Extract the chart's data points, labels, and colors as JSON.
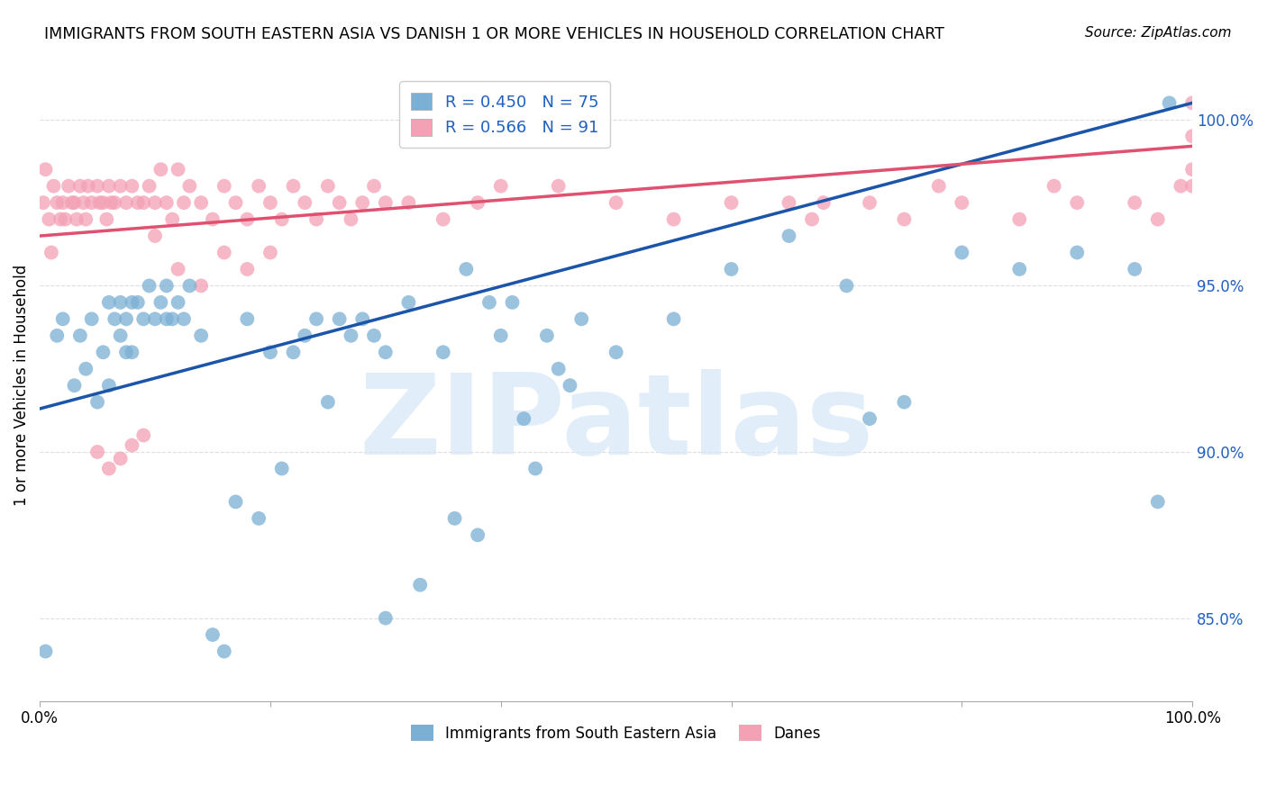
{
  "title": "IMMIGRANTS FROM SOUTH EASTERN ASIA VS DANISH 1 OR MORE VEHICLES IN HOUSEHOLD CORRELATION CHART",
  "source": "Source: ZipAtlas.com",
  "ylabel": "1 or more Vehicles in Household",
  "xlim": [
    0.0,
    100.0
  ],
  "ylim": [
    82.5,
    101.5
  ],
  "yticks": [
    85.0,
    90.0,
    95.0,
    100.0
  ],
  "xticks": [
    0.0,
    20.0,
    40.0,
    60.0,
    80.0,
    100.0
  ],
  "blue_R": 0.45,
  "blue_N": 75,
  "pink_R": 0.566,
  "pink_N": 91,
  "blue_color": "#7bafd4",
  "pink_color": "#f4a0b5",
  "blue_line_color": "#1a55aa",
  "pink_line_color": "#e05070",
  "watermark_color": "#d5e8f7",
  "background_color": "#ffffff",
  "grid_color": "#dddddd",
  "blue_line_y0": 91.3,
  "blue_line_y1": 100.5,
  "pink_line_y0": 96.5,
  "pink_line_y1": 99.2,
  "blue_points_x": [
    0.5,
    1.5,
    2.0,
    3.0,
    3.5,
    4.0,
    4.5,
    5.0,
    5.5,
    6.0,
    6.0,
    6.5,
    7.0,
    7.0,
    7.5,
    7.5,
    8.0,
    8.0,
    8.5,
    9.0,
    9.5,
    10.0,
    10.5,
    11.0,
    11.0,
    11.5,
    12.0,
    12.5,
    13.0,
    14.0,
    15.0,
    16.0,
    17.0,
    18.0,
    19.0,
    20.0,
    21.0,
    22.0,
    23.0,
    24.0,
    25.0,
    26.0,
    27.0,
    28.0,
    29.0,
    30.0,
    32.0,
    35.0,
    37.0,
    39.0,
    42.0,
    45.0,
    50.0,
    55.0,
    60.0,
    65.0,
    70.0,
    72.0,
    75.0,
    80.0,
    85.0,
    90.0,
    95.0,
    97.0,
    98.0,
    40.0,
    43.0,
    46.0,
    30.0,
    33.0,
    36.0,
    38.0,
    41.0,
    44.0,
    47.0
  ],
  "blue_points_y": [
    84.0,
    93.5,
    94.0,
    92.0,
    93.5,
    92.5,
    94.0,
    91.5,
    93.0,
    94.5,
    92.0,
    94.0,
    93.5,
    94.5,
    93.0,
    94.0,
    94.5,
    93.0,
    94.5,
    94.0,
    95.0,
    94.0,
    94.5,
    94.0,
    95.0,
    94.0,
    94.5,
    94.0,
    95.0,
    93.5,
    84.5,
    84.0,
    88.5,
    94.0,
    88.0,
    93.0,
    89.5,
    93.0,
    93.5,
    94.0,
    91.5,
    94.0,
    93.5,
    94.0,
    93.5,
    93.0,
    94.5,
    93.0,
    95.5,
    94.5,
    91.0,
    92.5,
    93.0,
    94.0,
    95.5,
    96.5,
    95.0,
    91.0,
    91.5,
    96.0,
    95.5,
    96.0,
    95.5,
    88.5,
    100.5,
    93.5,
    89.5,
    92.0,
    85.0,
    86.0,
    88.0,
    87.5,
    94.5,
    93.5,
    94.0
  ],
  "pink_points_x": [
    0.3,
    0.5,
    0.8,
    1.0,
    1.2,
    1.5,
    1.8,
    2.0,
    2.2,
    2.5,
    2.8,
    3.0,
    3.2,
    3.5,
    3.8,
    4.0,
    4.2,
    4.5,
    5.0,
    5.2,
    5.5,
    5.8,
    6.0,
    6.2,
    6.5,
    7.0,
    7.5,
    8.0,
    8.5,
    9.0,
    9.5,
    10.0,
    10.5,
    11.0,
    11.5,
    12.0,
    12.5,
    13.0,
    14.0,
    15.0,
    16.0,
    17.0,
    18.0,
    19.0,
    20.0,
    21.0,
    22.0,
    23.0,
    24.0,
    25.0,
    26.0,
    27.0,
    28.0,
    29.0,
    30.0,
    32.0,
    35.0,
    38.0,
    40.0,
    45.0,
    50.0,
    55.0,
    60.0,
    65.0,
    67.0,
    68.0,
    72.0,
    75.0,
    78.0,
    80.0,
    85.0,
    88.0,
    90.0,
    95.0,
    97.0,
    99.0,
    100.0,
    100.0,
    100.0,
    100.0,
    5.0,
    6.0,
    7.0,
    8.0,
    9.0,
    10.0,
    12.0,
    14.0,
    16.0,
    18.0,
    20.0
  ],
  "pink_points_y": [
    97.5,
    98.5,
    97.0,
    96.0,
    98.0,
    97.5,
    97.0,
    97.5,
    97.0,
    98.0,
    97.5,
    97.5,
    97.0,
    98.0,
    97.5,
    97.0,
    98.0,
    97.5,
    98.0,
    97.5,
    97.5,
    97.0,
    98.0,
    97.5,
    97.5,
    98.0,
    97.5,
    98.0,
    97.5,
    97.5,
    98.0,
    97.5,
    98.5,
    97.5,
    97.0,
    98.5,
    97.5,
    98.0,
    97.5,
    97.0,
    98.0,
    97.5,
    97.0,
    98.0,
    97.5,
    97.0,
    98.0,
    97.5,
    97.0,
    98.0,
    97.5,
    97.0,
    97.5,
    98.0,
    97.5,
    97.5,
    97.0,
    97.5,
    98.0,
    98.0,
    97.5,
    97.0,
    97.5,
    97.5,
    97.0,
    97.5,
    97.5,
    97.0,
    98.0,
    97.5,
    97.0,
    98.0,
    97.5,
    97.5,
    97.0,
    98.0,
    100.5,
    98.0,
    99.5,
    98.5,
    90.0,
    89.5,
    89.8,
    90.2,
    90.5,
    96.5,
    95.5,
    95.0,
    96.0,
    95.5,
    96.0
  ]
}
